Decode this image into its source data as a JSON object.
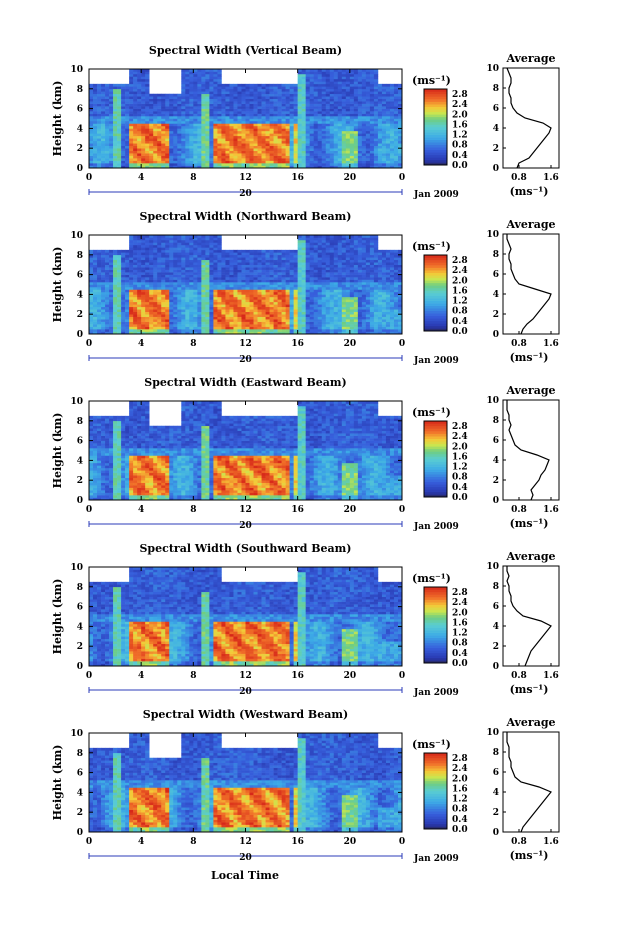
{
  "figure": {
    "xlabel": "Local Time",
    "time_ticks": [
      "0",
      "4",
      "8",
      "12",
      "16",
      "20",
      "0"
    ],
    "day_label": "20",
    "date_label": "Jan 2009",
    "height_ticks": [
      "0",
      "2",
      "4",
      "6",
      "8",
      "10"
    ],
    "ylabel": "Height (km)",
    "unit_label": "(ms⁻¹)",
    "colorbar_ticks": [
      "0.0",
      "0.4",
      "0.8",
      "1.2",
      "1.6",
      "2.0",
      "2.4",
      "2.8"
    ],
    "profile_title": "Average",
    "profile_xticks": [
      "0.8",
      "1.6"
    ],
    "profile_xlabel": "(ms⁻¹)",
    "colors": {
      "low": "#2b3bb8",
      "mid": "#3ec0e0",
      "high": "#e8402a",
      "peak": "#d02818",
      "background": "#ffffff"
    }
  },
  "chart_data": [
    {
      "type": "heatmap",
      "title": "Spectral Width (Vertical Beam)",
      "xlabel": "Local Time",
      "ylabel": "Height (km)",
      "xlim": [
        0,
        24
      ],
      "ylim": [
        0,
        10
      ],
      "clim": [
        0,
        3.0
      ],
      "profile": {
        "title": "Average",
        "heights": [
          0,
          0.5,
          1,
          1.5,
          2,
          2.5,
          3,
          3.5,
          4,
          4.5,
          5,
          5.5,
          6,
          6.5,
          7,
          7.5,
          8,
          8.5,
          9,
          9.5,
          10
        ],
        "values": [
          0.75,
          0.8,
          1.05,
          1.15,
          1.25,
          1.35,
          1.45,
          1.55,
          1.6,
          1.4,
          0.95,
          0.75,
          0.65,
          0.6,
          0.6,
          0.55,
          0.55,
          0.6,
          0.6,
          0.55,
          0.5
        ]
      }
    },
    {
      "type": "heatmap",
      "title": "Spectral Width (Northward Beam)",
      "xlabel": "Local Time",
      "ylabel": "Height (km)",
      "xlim": [
        0,
        24
      ],
      "ylim": [
        0,
        10
      ],
      "clim": [
        0,
        3.0
      ],
      "profile": {
        "title": "Average",
        "heights": [
          0,
          0.5,
          1,
          1.5,
          2,
          2.5,
          3,
          3.5,
          4,
          4.5,
          5,
          5.5,
          6,
          6.5,
          7,
          7.5,
          8,
          8.5,
          9,
          9.5,
          10
        ],
        "values": [
          0.85,
          0.9,
          1.0,
          1.15,
          1.25,
          1.35,
          1.45,
          1.55,
          1.6,
          1.2,
          0.8,
          0.7,
          0.65,
          0.6,
          0.6,
          0.55,
          0.55,
          0.6,
          0.55,
          0.5,
          0.5
        ]
      }
    },
    {
      "type": "heatmap",
      "title": "Spectral Width (Eastward Beam)",
      "xlabel": "Local Time",
      "ylabel": "Height (km)",
      "xlim": [
        0,
        24
      ],
      "ylim": [
        0,
        10
      ],
      "clim": [
        0,
        3.0
      ],
      "profile": {
        "title": "Average",
        "heights": [
          0,
          0.5,
          1,
          1.5,
          2,
          2.5,
          3,
          3.5,
          4,
          4.5,
          5,
          5.5,
          6,
          6.5,
          7,
          7.5,
          8,
          8.5,
          9,
          9.5,
          10
        ],
        "values": [
          1.1,
          1.15,
          1.1,
          1.2,
          1.3,
          1.35,
          1.45,
          1.5,
          1.55,
          1.25,
          0.85,
          0.7,
          0.65,
          0.6,
          0.55,
          0.6,
          0.55,
          0.55,
          0.5,
          0.5,
          0.5
        ]
      }
    },
    {
      "type": "heatmap",
      "title": "Spectral Width (Southward Beam)",
      "xlabel": "Local Time",
      "ylabel": "Height (km)",
      "xlim": [
        0,
        24
      ],
      "ylim": [
        0,
        10
      ],
      "clim": [
        0,
        3.0
      ],
      "profile": {
        "title": "Average",
        "heights": [
          0,
          0.5,
          1,
          1.5,
          2,
          2.5,
          3,
          3.5,
          4,
          4.5,
          5,
          5.5,
          6,
          6.5,
          7,
          7.5,
          8,
          8.5,
          9,
          9.5,
          10
        ],
        "values": [
          0.95,
          1.0,
          1.05,
          1.1,
          1.2,
          1.3,
          1.4,
          1.5,
          1.6,
          1.35,
          0.9,
          0.75,
          0.65,
          0.6,
          0.6,
          0.55,
          0.55,
          0.5,
          0.55,
          0.5,
          0.5
        ]
      }
    },
    {
      "type": "heatmap",
      "title": "Spectral Width (Westward Beam)",
      "xlabel": "Local Time",
      "ylabel": "Height (km)",
      "xlim": [
        0,
        24
      ],
      "ylim": [
        0,
        10
      ],
      "clim": [
        0,
        3.0
      ],
      "profile": {
        "title": "Average",
        "heights": [
          0,
          0.5,
          1,
          1.5,
          2,
          2.5,
          3,
          3.5,
          4,
          4.5,
          5,
          5.5,
          6,
          6.5,
          7,
          7.5,
          8,
          8.5,
          9,
          9.5,
          10
        ],
        "values": [
          0.85,
          0.9,
          1.0,
          1.1,
          1.2,
          1.3,
          1.4,
          1.5,
          1.6,
          1.3,
          0.85,
          0.7,
          0.65,
          0.6,
          0.6,
          0.55,
          0.55,
          0.55,
          0.5,
          0.5,
          0.5
        ]
      }
    }
  ]
}
